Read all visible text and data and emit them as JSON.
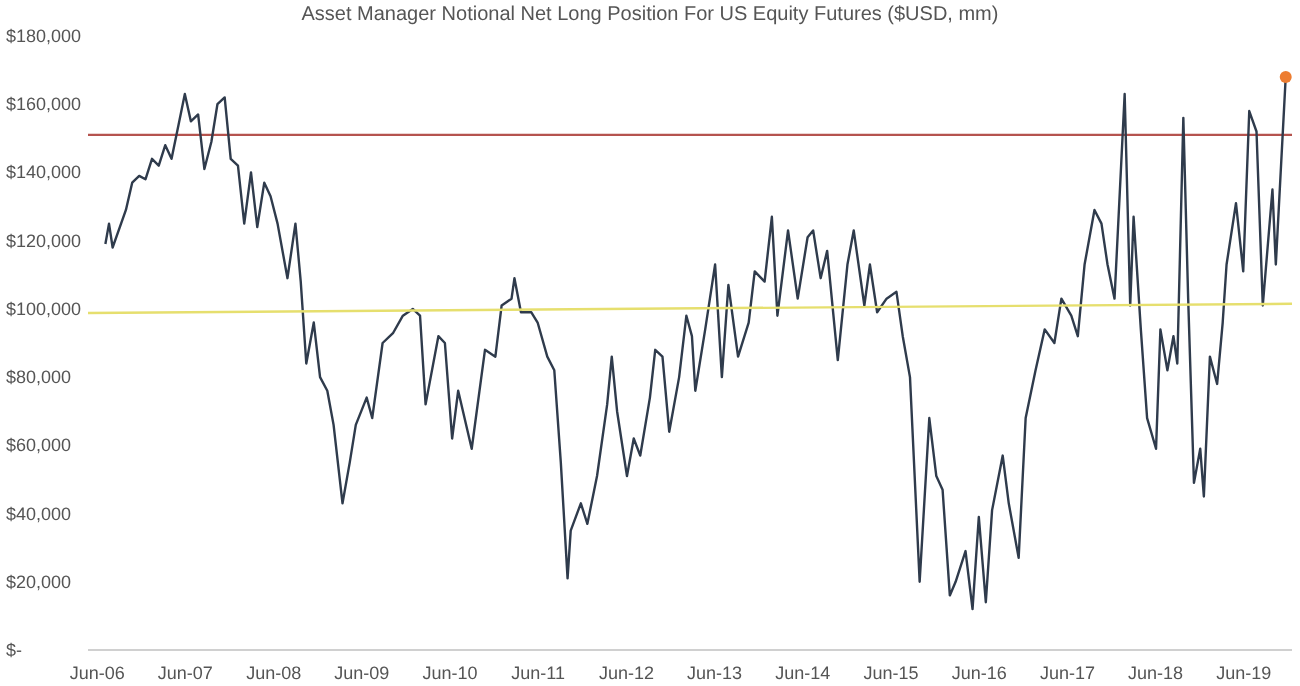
{
  "chart_data": {
    "type": "line",
    "title": "Asset Manager Notional Net Long Position For US Equity Futures ($USD, mm)",
    "xlim": [
      "2006-05-08",
      "2020-01-01"
    ],
    "xticks": [
      {
        "value": "2006-06-15",
        "label": "Jun-06"
      },
      {
        "value": "2007-06-15",
        "label": "Jun-07"
      },
      {
        "value": "2008-06-15",
        "label": "Jun-08"
      },
      {
        "value": "2009-06-15",
        "label": "Jun-09"
      },
      {
        "value": "2010-06-15",
        "label": "Jun-10"
      },
      {
        "value": "2011-06-15",
        "label": "Jun-11"
      },
      {
        "value": "2012-06-15",
        "label": "Jun-12"
      },
      {
        "value": "2013-06-15",
        "label": "Jun-13"
      },
      {
        "value": "2014-06-15",
        "label": "Jun-14"
      },
      {
        "value": "2015-06-15",
        "label": "Jun-15"
      },
      {
        "value": "2016-06-15",
        "label": "Jun-16"
      },
      {
        "value": "2017-06-15",
        "label": "Jun-17"
      },
      {
        "value": "2018-06-15",
        "label": "Jun-18"
      },
      {
        "value": "2019-06-15",
        "label": "Jun-19"
      }
    ],
    "ylim": [
      0,
      180000
    ],
    "yticks": [
      {
        "value": 0,
        "label": "$-"
      },
      {
        "value": 20000,
        "label": "$20,000"
      },
      {
        "value": 40000,
        "label": "$40,000"
      },
      {
        "value": 60000,
        "label": "$60,000"
      },
      {
        "value": 80000,
        "label": "$80,000"
      },
      {
        "value": 100000,
        "label": "$100,000"
      },
      {
        "value": 120000,
        "label": "$120,000"
      },
      {
        "value": 140000,
        "label": "$140,000"
      },
      {
        "value": 160000,
        "label": "$160,000"
      },
      {
        "value": 180000,
        "label": "$180,000"
      }
    ],
    "marker": "none",
    "ref_lines": [
      {
        "axis": "y",
        "value": 151000,
        "color": "#b5534e"
      }
    ],
    "series": [
      {
        "color": "#2f3b4c",
        "x": [
          "2006-07-19",
          "2006-08-03",
          "2006-08-18",
          "2006-10-12",
          "2006-11-07",
          "2006-12-06",
          "2007-01-01",
          "2007-01-28",
          "2007-02-25",
          "2007-03-24",
          "2007-04-19",
          "2007-05-18",
          "2007-06-13",
          "2007-07-08",
          "2007-08-07",
          "2007-09-02",
          "2007-10-01",
          "2007-10-26",
          "2007-11-25",
          "2007-12-20",
          "2008-01-19",
          "2008-02-14",
          "2008-03-13",
          "2008-04-08",
          "2008-05-07",
          "2008-06-02",
          "2008-07-01",
          "2008-08-11",
          "2008-09-13",
          "2008-10-05",
          "2008-10-28",
          "2008-11-28",
          "2008-12-24",
          "2009-01-23",
          "2009-02-18",
          "2009-03-27",
          "2009-04-26",
          "2009-05-21",
          "2009-07-05",
          "2009-07-28",
          "2009-09-09",
          "2009-10-23",
          "2009-12-02",
          "2010-01-12",
          "2010-02-11",
          "2010-03-06",
          "2010-04-28",
          "2010-05-25",
          "2010-06-24",
          "2010-07-19",
          "2010-09-13",
          "2010-11-07",
          "2010-12-20",
          "2011-01-15",
          "2011-02-25",
          "2011-03-09",
          "2011-04-05",
          "2011-05-18",
          "2011-06-13",
          "2011-07-23",
          "2011-08-21",
          "2011-09-17",
          "2011-10-15",
          "2011-10-28",
          "2011-12-09",
          "2012-01-05",
          "2012-02-14",
          "2012-03-27",
          "2012-04-15",
          "2012-05-07",
          "2012-06-17",
          "2012-07-15",
          "2012-08-11",
          "2012-09-20",
          "2012-10-12",
          "2012-11-11",
          "2012-12-09",
          "2013-01-19",
          "2013-02-18",
          "2013-03-13",
          "2013-03-27",
          "2013-05-07",
          "2013-06-17",
          "2013-07-15",
          "2013-08-11",
          "2013-09-20",
          "2013-11-03",
          "2013-11-28",
          "2014-01-08",
          "2014-02-07",
          "2014-03-02",
          "2014-04-15",
          "2014-05-25",
          "2014-07-05",
          "2014-07-28",
          "2014-08-28",
          "2014-09-24",
          "2014-11-07",
          "2014-12-17",
          "2015-01-12",
          "2015-02-25",
          "2015-03-20",
          "2015-04-19",
          "2015-05-28",
          "2015-07-08",
          "2015-08-03",
          "2015-09-02",
          "2015-10-12",
          "2015-11-21",
          "2015-12-20",
          "2016-01-15",
          "2016-02-14",
          "2016-03-09",
          "2016-04-19",
          "2016-05-18",
          "2016-06-13",
          "2016-07-12",
          "2016-08-07",
          "2016-09-20",
          "2016-10-15",
          "2016-11-25",
          "2016-12-24",
          "2017-02-03",
          "2017-03-13",
          "2017-04-22",
          "2017-05-21",
          "2017-07-01",
          "2017-07-28",
          "2017-08-25",
          "2017-10-05",
          "2017-11-03",
          "2017-11-28",
          "2017-12-27",
          "2018-02-07",
          "2018-03-02",
          "2018-03-16",
          "2018-04-15",
          "2018-05-11",
          "2018-06-17",
          "2018-07-05",
          "2018-08-03",
          "2018-08-28",
          "2018-09-13",
          "2018-10-08",
          "2018-10-28",
          "2018-11-21",
          "2018-12-17",
          "2019-01-01",
          "2019-01-26",
          "2019-02-25",
          "2019-03-20",
          "2019-04-05",
          "2019-05-14",
          "2019-06-13",
          "2019-07-08",
          "2019-08-07",
          "2019-09-02",
          "2019-10-12",
          "2019-10-26",
          "2019-12-06"
        ],
        "values": [
          119000,
          125000,
          118000,
          129000,
          137000,
          139000,
          138000,
          144000,
          142000,
          148000,
          144000,
          154000,
          163000,
          155000,
          157000,
          141000,
          149000,
          160000,
          162000,
          144000,
          142000,
          125000,
          140000,
          124000,
          137000,
          133000,
          125000,
          109000,
          125000,
          108000,
          84000,
          96000,
          80000,
          76000,
          66000,
          43000,
          55000,
          66000,
          74000,
          68000,
          90000,
          93000,
          98000,
          100000,
          98000,
          72000,
          92000,
          90000,
          62000,
          76000,
          59000,
          88000,
          86000,
          101000,
          103000,
          109000,
          99000,
          99000,
          96000,
          86000,
          82000,
          55000,
          21000,
          35000,
          43000,
          37000,
          51000,
          72000,
          86000,
          70000,
          51000,
          62000,
          57000,
          74000,
          88000,
          86000,
          64000,
          80000,
          98000,
          92000,
          76000,
          94000,
          113000,
          80000,
          107000,
          86000,
          96000,
          111000,
          108000,
          127000,
          98000,
          123000,
          103000,
          121000,
          123000,
          109000,
          117000,
          85000,
          113000,
          123000,
          101000,
          113000,
          99000,
          103000,
          105000,
          92000,
          80000,
          20000,
          68000,
          51000,
          47000,
          16000,
          20000,
          29000,
          12000,
          39000,
          14000,
          41000,
          57000,
          43000,
          27000,
          68000,
          82000,
          94000,
          90000,
          103000,
          98000,
          92000,
          113000,
          129000,
          125000,
          113000,
          103000,
          163000,
          101000,
          127000,
          94000,
          68000,
          59000,
          94000,
          82000,
          92000,
          84000,
          156000,
          103000,
          49000,
          59000,
          45000,
          86000,
          78000,
          96000,
          113000,
          131000,
          111000,
          158000,
          152000,
          101000,
          135000,
          113000,
          168000
        ]
      },
      {
        "color": "#e6df6e",
        "x": [
          "2006-05-08",
          "2020-01-01"
        ],
        "values": [
          98800,
          101500
        ]
      },
      {
        "type": "scatter",
        "color": "#ed7d31",
        "marker": "circle",
        "x": [
          "2019-12-06"
        ],
        "values": [
          168000
        ]
      }
    ]
  }
}
